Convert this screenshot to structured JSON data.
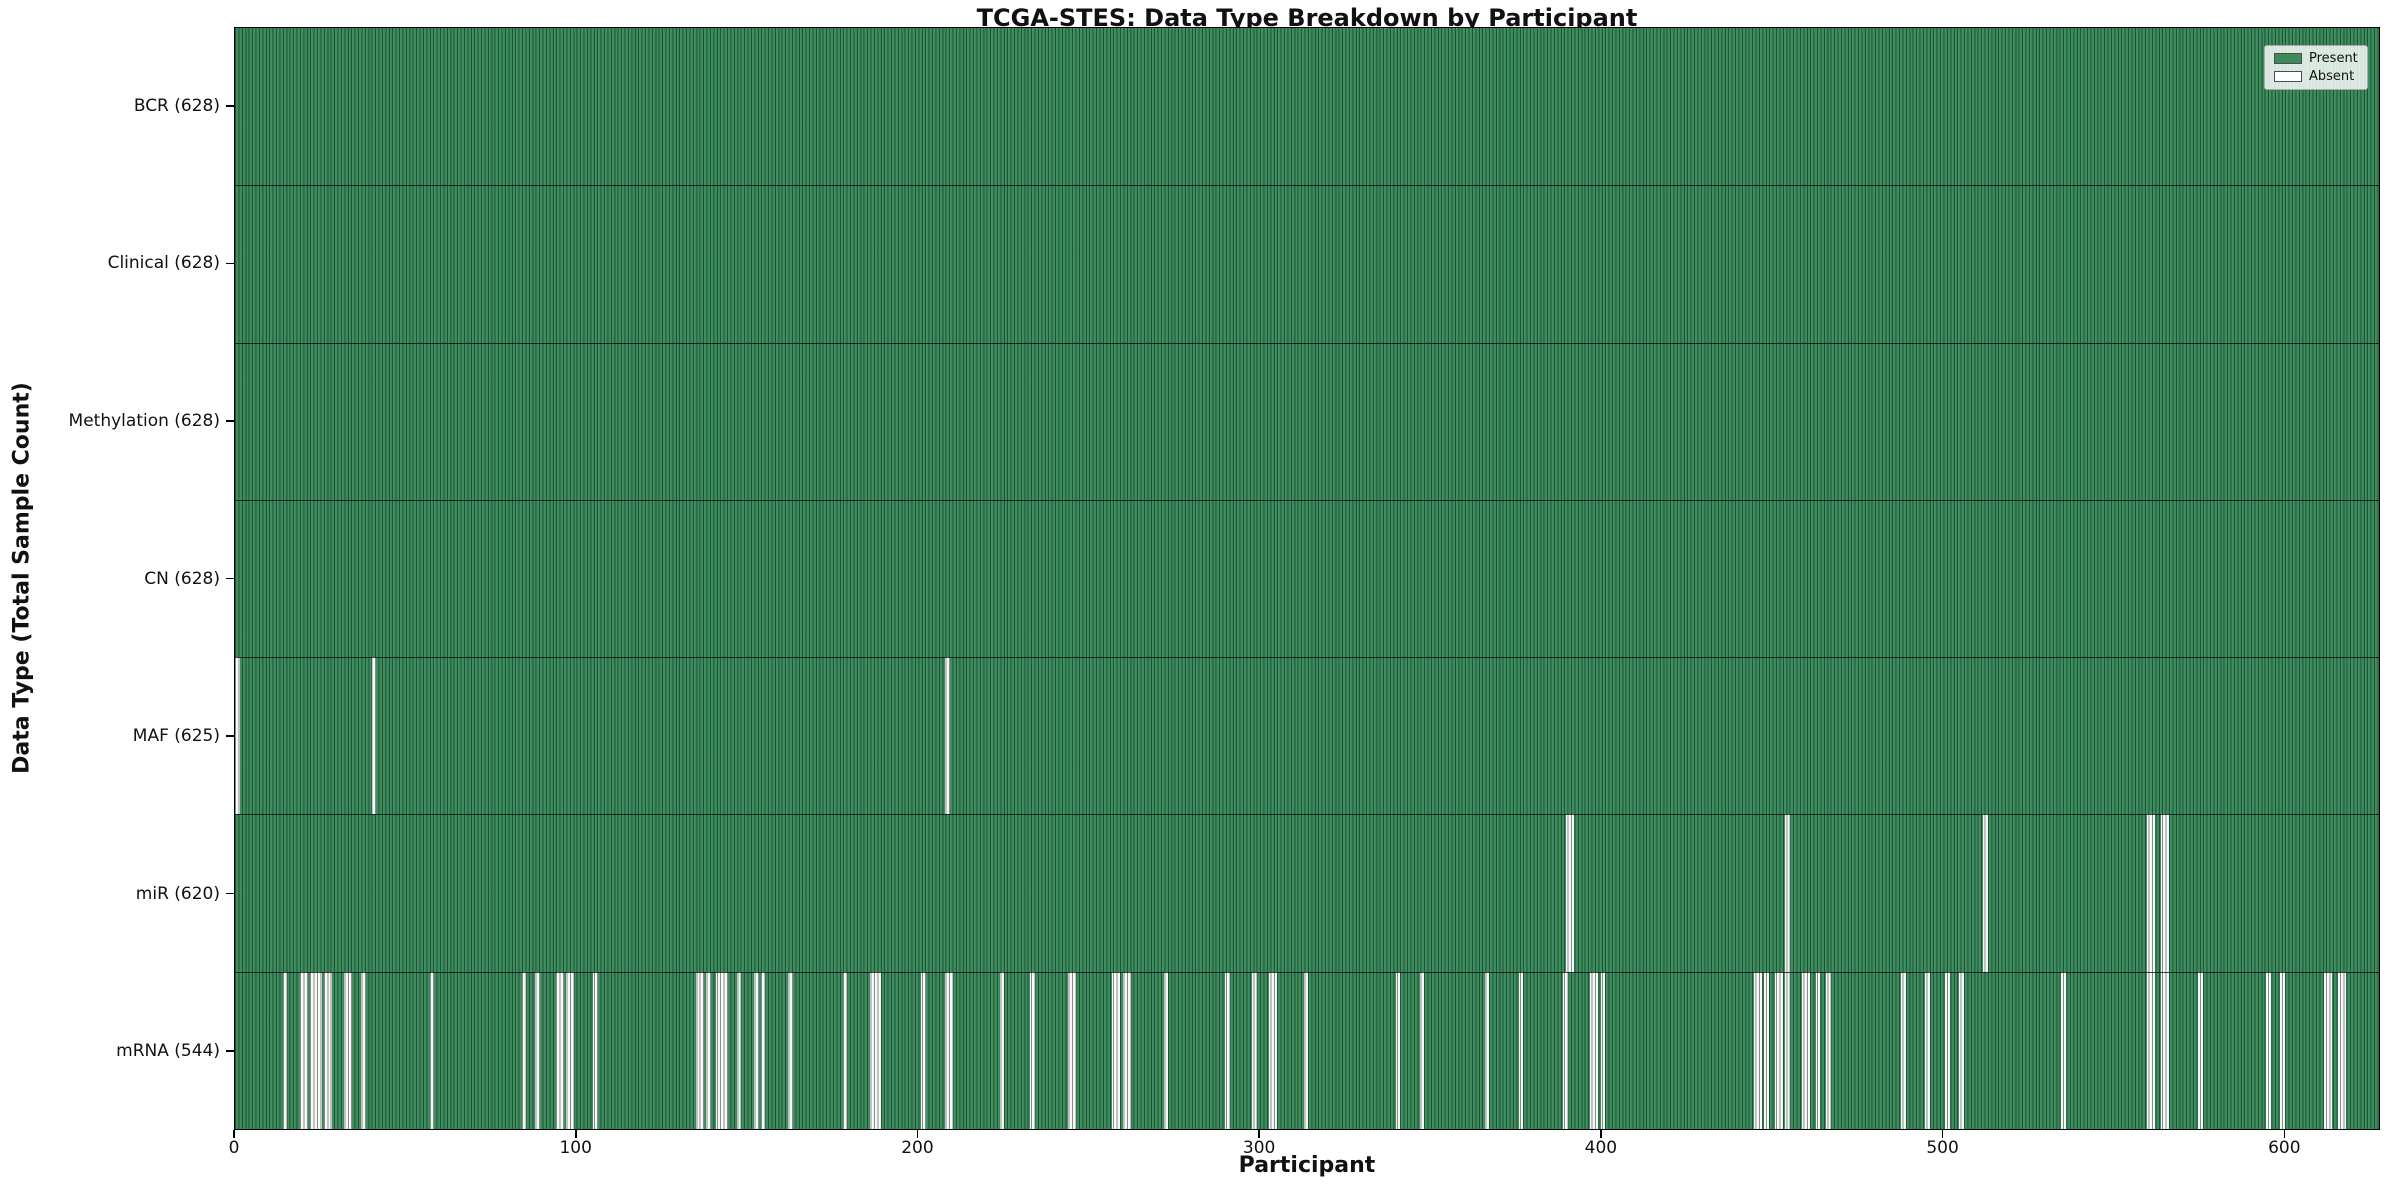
{
  "title": "TCGA-STES: Data Type Breakdown by Participant",
  "xlabel": "Participant",
  "ylabel": "Data Type (Total Sample Count)",
  "colors": {
    "present": "#3a8c5c",
    "absent": "#fcfcfc",
    "bar_edge": "#0a2416",
    "plot_border": "#000000"
  },
  "legend": {
    "position": "top-right",
    "entries": [
      {
        "label": "Present",
        "color": "#3a8c5c"
      },
      {
        "label": "Absent",
        "color": "#ffffff"
      }
    ]
  },
  "chart_data": {
    "type": "heatmap",
    "title": "TCGA-STES: Data Type Breakdown by Participant",
    "xlabel": "Participant",
    "ylabel": "Data Type (Total Sample Count)",
    "grid": false,
    "legend_position": "upper right",
    "x_axis": {
      "label": "Participant",
      "range": [
        0,
        628
      ],
      "ticks": [
        0,
        100,
        200,
        300,
        400,
        500,
        600
      ]
    },
    "n_participants": 628,
    "cell_values": {
      "present": 1,
      "absent": 0
    },
    "rows": [
      {
        "label": "BCR (628)",
        "data_type": "BCR",
        "total": 628,
        "absent_participants": []
      },
      {
        "label": "Clinical (628)",
        "data_type": "Clinical",
        "total": 628,
        "absent_participants": []
      },
      {
        "label": "Methylation (628)",
        "data_type": "Methylation",
        "total": 628,
        "absent_participants": []
      },
      {
        "label": "CN (628)",
        "data_type": "CN",
        "total": 628,
        "absent_participants": []
      },
      {
        "label": "MAF (625)",
        "data_type": "MAF",
        "total": 625,
        "absent_participants": [
          0,
          40,
          208
        ]
      },
      {
        "label": "miR (620)",
        "data_type": "miR",
        "total": 620,
        "absent_participants": [
          390,
          391,
          454,
          512,
          560,
          561,
          564,
          565
        ]
      },
      {
        "label": "mRNA (544)",
        "data_type": "mRNA",
        "total": 544,
        "absent_participants": [
          14,
          19,
          20,
          22,
          23,
          24,
          26,
          27,
          32,
          33,
          37,
          57,
          84,
          88,
          94,
          95,
          97,
          98,
          105,
          135,
          136,
          138,
          141,
          142,
          143,
          147,
          152,
          154,
          162,
          178,
          186,
          187,
          188,
          201,
          208,
          209,
          224,
          233,
          244,
          245,
          257,
          258,
          260,
          261,
          272,
          290,
          298,
          303,
          304,
          313,
          340,
          347,
          366,
          376,
          389,
          397,
          398,
          400,
          445,
          446,
          448,
          451,
          452,
          454,
          459,
          460,
          463,
          466,
          488,
          495,
          501,
          505,
          535,
          560,
          561,
          564,
          565,
          575,
          595,
          599,
          612,
          613,
          616,
          617
        ]
      }
    ]
  }
}
